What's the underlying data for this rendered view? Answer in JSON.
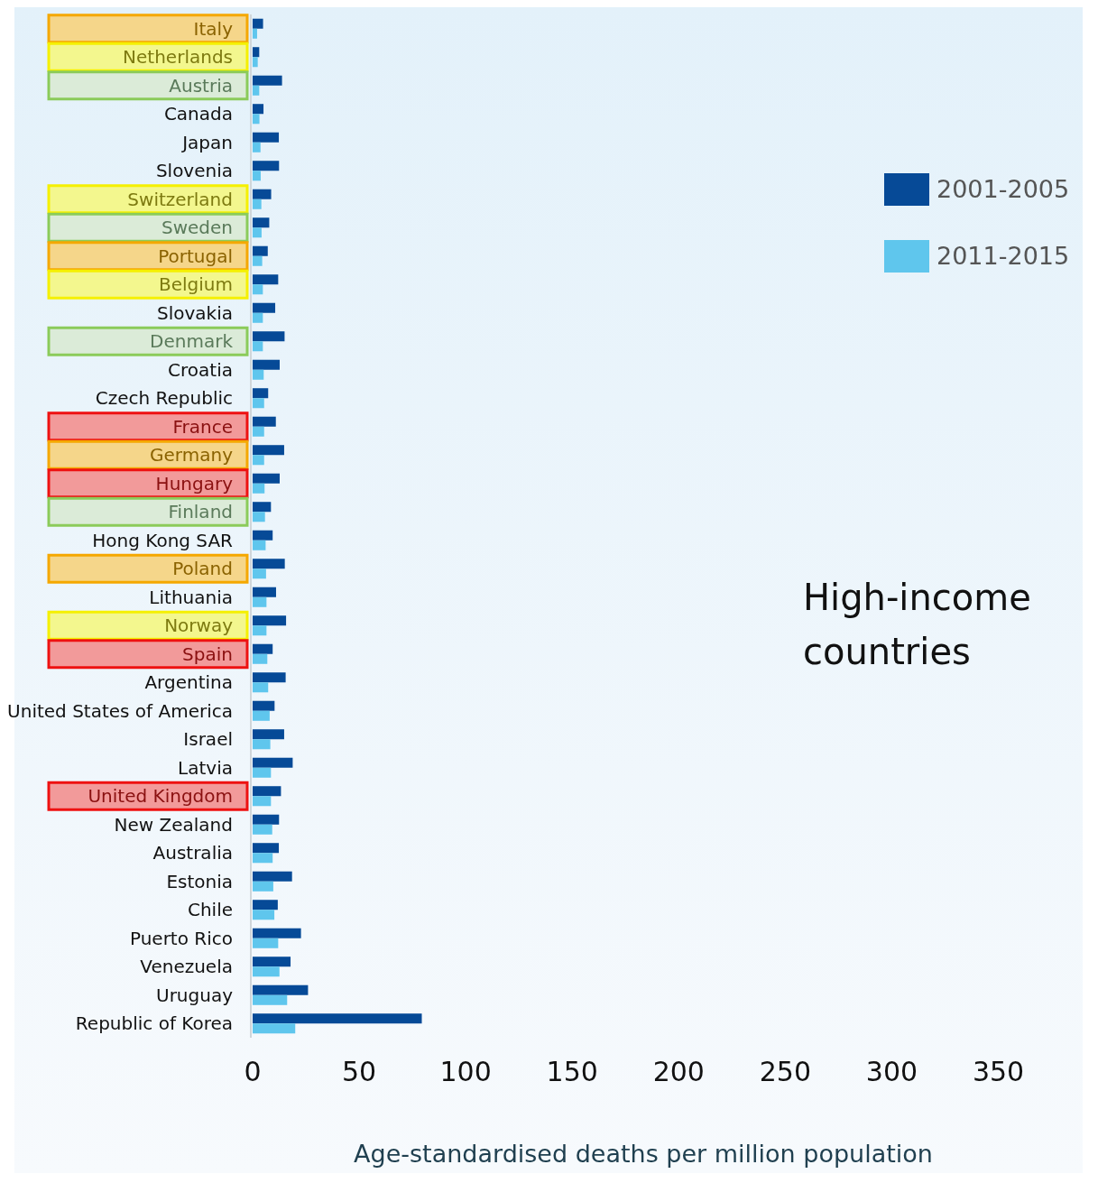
{
  "chart_data": {
    "type": "bar",
    "orientation": "horizontal",
    "xlabel": "Age-standardised deaths per million population",
    "categories": [
      "Italy",
      "Netherlands",
      "Austria",
      "Canada",
      "Japan",
      "Slovenia",
      "Switzerland",
      "Sweden",
      "Portugal",
      "Belgium",
      "Slovakia",
      "Denmark",
      "Croatia",
      "Czech Republic",
      "France",
      "Germany",
      "Hungary",
      "Finland",
      "Hong Kong SAR",
      "Poland",
      "Lithuania",
      "Norway",
      "Spain",
      "Argentina",
      "United States of America",
      "Israel",
      "Latvia",
      "United Kingdom",
      "New Zealand",
      "Australia",
      "Estonia",
      "Chile",
      "Puerto Rico",
      "Venezuela",
      "Uruguay",
      "Republic of Korea"
    ],
    "series": [
      {
        "name": "2001-2005",
        "color": "#064a97",
        "values": [
          4.9,
          3.1,
          13.8,
          5.1,
          12.3,
          12.4,
          8.7,
          7.8,
          7.1,
          12,
          10.6,
          15,
          12.7,
          7.3,
          10.9,
          14.8,
          12.7,
          8.6,
          9.4,
          15.1,
          11,
          15.7,
          9.4,
          15.5,
          10.3,
          14.8,
          18.8,
          13.3,
          12.4,
          12.3,
          18.5,
          11.8,
          22.7,
          17.8,
          26,
          79.4
        ]
      },
      {
        "name": "2011-2015",
        "color": "#5fc6ed",
        "values": [
          2.1,
          2.4,
          3.1,
          3.2,
          3.7,
          3.8,
          4.1,
          4.2,
          4.5,
          4.8,
          4.8,
          4.8,
          5.2,
          5.4,
          5.4,
          5.4,
          5.6,
          5.8,
          6.1,
          6.3,
          6.5,
          6.5,
          6.9,
          7.3,
          8,
          8.3,
          8.6,
          8.6,
          9.2,
          9.4,
          9.7,
          10.2,
          12,
          12.6,
          16.2,
          20
        ]
      }
    ],
    "xlim": [
      0,
      390
    ],
    "xticks": [
      0,
      50,
      100,
      150,
      200,
      250,
      300,
      350
    ],
    "grid": false,
    "legend": "right",
    "annotations": [
      "High-income countries"
    ]
  }
}
